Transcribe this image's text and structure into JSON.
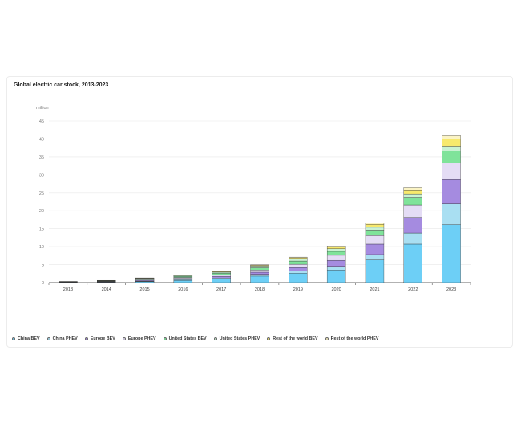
{
  "title": "Global electric car stock, 2013-2023",
  "legend": [
    {
      "name": "China BEV",
      "color": "#6dcff6"
    },
    {
      "name": "China PHEV",
      "color": "#a9dff2"
    },
    {
      "name": "Europe BEV",
      "color": "#a58be0"
    },
    {
      "name": "Europe PHEV",
      "color": "#e4dcf5"
    },
    {
      "name": "United States BEV",
      "color": "#7fe39a"
    },
    {
      "name": "United States PHEV",
      "color": "#c9f2d3"
    },
    {
      "name": "Rest of the world BEV",
      "color": "#f7e96d"
    },
    {
      "name": "Rest of the world PHEV",
      "color": "#fbf4c4"
    }
  ],
  "chart_data": {
    "type": "bar",
    "stacked": true,
    "title": "Global electric car stock, 2013-2023",
    "ylabel": "million",
    "ylim": [
      0,
      45
    ],
    "yticks": [
      0,
      5,
      10,
      15,
      20,
      25,
      30,
      35,
      40,
      45
    ],
    "grid": true,
    "legend_position": "bottom-left",
    "categories": [
      "2013",
      "2014",
      "2015",
      "2016",
      "2017",
      "2018",
      "2019",
      "2020",
      "2021",
      "2022",
      "2023"
    ],
    "series": [
      {
        "name": "China BEV",
        "color": "#6dcff6",
        "values": [
          0.05,
          0.1,
          0.3,
          0.6,
          1.0,
          1.8,
          2.6,
          3.5,
          6.3,
          10.7,
          16.1
        ]
      },
      {
        "name": "China PHEV",
        "color": "#a9dff2",
        "values": [
          0.01,
          0.05,
          0.1,
          0.25,
          0.3,
          0.5,
          0.7,
          1.0,
          1.5,
          3.1,
          5.8
        ]
      },
      {
        "name": "Europe BEV",
        "color": "#a58be0",
        "values": [
          0.07,
          0.1,
          0.2,
          0.3,
          0.45,
          0.6,
          0.9,
          1.7,
          2.9,
          4.3,
          6.8
        ]
      },
      {
        "name": "Europe PHEV",
        "color": "#e4dcf5",
        "values": [
          0.05,
          0.1,
          0.2,
          0.3,
          0.45,
          0.6,
          0.9,
          1.4,
          2.4,
          3.5,
          4.6
        ]
      },
      {
        "name": "United States BEV",
        "color": "#7fe39a",
        "values": [
          0.05,
          0.1,
          0.25,
          0.3,
          0.4,
          0.6,
          0.9,
          1.1,
          1.5,
          2.1,
          3.3
        ]
      },
      {
        "name": "United States PHEV",
        "color": "#c9f2d3",
        "values": [
          0.06,
          0.1,
          0.15,
          0.2,
          0.3,
          0.5,
          0.6,
          0.7,
          0.8,
          1.0,
          1.4
        ]
      },
      {
        "name": "Rest of the world BEV",
        "color": "#f7e96d",
        "values": [
          0.02,
          0.05,
          0.07,
          0.1,
          0.15,
          0.2,
          0.3,
          0.5,
          0.8,
          1.1,
          2.0
        ]
      },
      {
        "name": "Rest of the world PHEV",
        "color": "#fbf4c4",
        "values": [
          0.01,
          0.03,
          0.05,
          0.05,
          0.1,
          0.15,
          0.2,
          0.3,
          0.4,
          0.6,
          0.9
        ]
      }
    ]
  }
}
